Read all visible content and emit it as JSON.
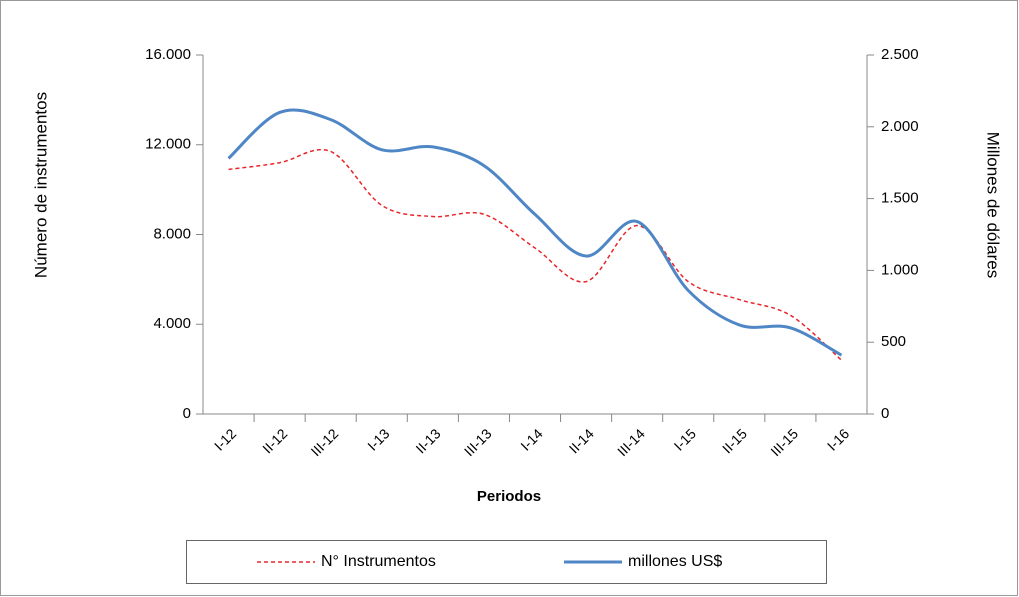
{
  "chart_data": {
    "type": "line",
    "xlabel": "Periodos",
    "ylabel": "Número de instrumentos",
    "y2label": "Millones de dólares",
    "categories": [
      "I-12",
      "II-12",
      "III-12",
      "I-13",
      "II-13",
      "III-13",
      "I-14",
      "II-14",
      "III-14",
      "I-15",
      "II-15",
      "III-15",
      "I-16"
    ],
    "series": [
      {
        "name": "N° Instrumentos",
        "color": "#e8262a",
        "dash": true,
        "values": [
          10900,
          11200,
          11700,
          9300,
          8800,
          8900,
          7400,
          5900,
          8400,
          5900,
          5100,
          4400,
          2400
        ]
      },
      {
        "name": "millones US$",
        "color": "#4f86c6",
        "axis": "y2",
        "values": [
          1780,
          2100,
          2050,
          1840,
          1860,
          1730,
          1390,
          1100,
          1340,
          860,
          620,
          600,
          410
        ]
      }
    ],
    "ylim": [
      0,
      16000
    ],
    "yticks": [
      0,
      {
        "value": 4000,
        "label": "4.000"
      },
      {
        "value": 8000,
        "label": "8.000"
      },
      {
        "value": 12000,
        "label": "12.000"
      },
      {
        "value": 16000,
        "label": "16.000"
      }
    ],
    "y2lim": [
      0,
      2500
    ],
    "y2ticks": [
      0,
      500,
      {
        "value": 1000,
        "label": "1.000"
      },
      {
        "value": 1500,
        "label": "1.500"
      },
      {
        "value": 2000,
        "label": "2.000"
      },
      {
        "value": 2500,
        "label": "2.500"
      }
    ],
    "legend": "bottom"
  }
}
